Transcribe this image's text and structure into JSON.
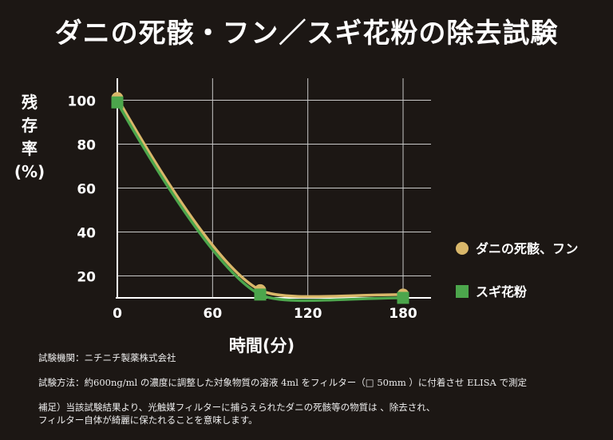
{
  "title": "ダニの死骸・フン／スギ花粉の除去試験",
  "chart_data": {
    "type": "line",
    "xlabel": "時間(分)",
    "ylabel": [
      "残",
      "存",
      "率",
      "(%)"
    ],
    "x_ticks": [
      0,
      60,
      120,
      180
    ],
    "y_ticks": [
      20,
      40,
      60,
      80,
      100
    ],
    "xlim": [
      0,
      180
    ],
    "ylim": [
      10,
      110
    ],
    "grid": true,
    "legend_position": "right",
    "series": [
      {
        "name": "ダニの死骸、フン",
        "marker": "circle",
        "color": "#d9b76a",
        "x": [
          0,
          90,
          180
        ],
        "y": [
          101,
          13.5,
          11.5
        ]
      },
      {
        "name": "スギ花粉",
        "marker": "square",
        "color": "#4ca64c",
        "x": [
          0,
          90,
          180
        ],
        "y": [
          99,
          11.5,
          10
        ]
      }
    ]
  },
  "notes": {
    "agency": "試験機関：ニチニチ製薬株式会社",
    "method": "試験方法：約600ng/ml の濃度に調整した対象物質の溶液 4ml をフィルター（□ 50mm ）に付着させ ELISA で測定",
    "supplement1": "補足）当該試験結果より、光触媒フィルターに捕らえられたダニの死骸等の物質は 、除去され、",
    "supplement2": "フィルター自体が綺麗に保たれることを意味します。"
  }
}
